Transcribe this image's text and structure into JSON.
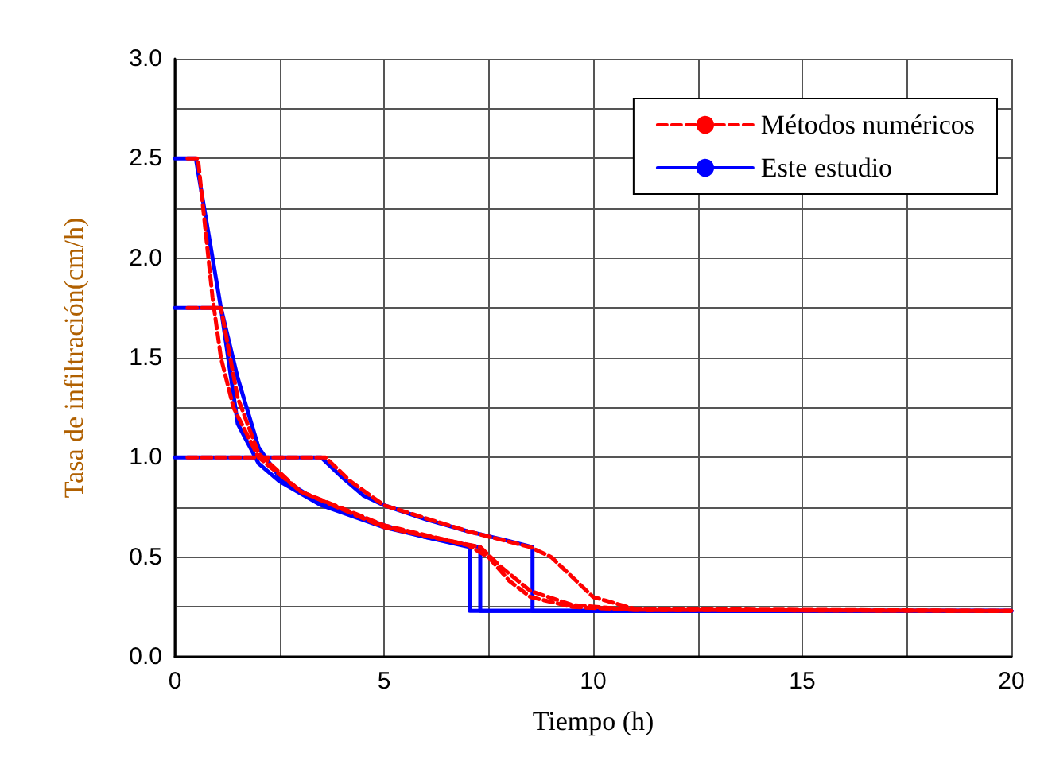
{
  "chart_data": {
    "type": "line",
    "xlabel": "Tiempo (h)",
    "ylabel": "Tasa de infiltración(cm/h)",
    "xlim": [
      0,
      20
    ],
    "ylim": [
      0,
      3.0
    ],
    "xticks": [
      0,
      {
        "value": 2.5,
        "label": null
      },
      5,
      {
        "value": 7.5,
        "label": null
      },
      10,
      {
        "value": 12.5,
        "label": null
      },
      15,
      {
        "value": 17.5,
        "label": null
      },
      20
    ],
    "yticks": [
      {
        "value": 0,
        "label": "0.0"
      },
      {
        "value": 0.25,
        "label": null
      },
      0.5,
      {
        "value": 0.75,
        "label": null
      },
      {
        "value": 1,
        "label": "1.0"
      },
      {
        "value": 1.25,
        "label": null
      },
      1.5,
      {
        "value": 1.75,
        "label": null
      },
      {
        "value": 2,
        "label": "2.0"
      },
      {
        "value": 2.25,
        "label": null
      },
      2.5,
      {
        "value": 2.75,
        "label": null
      },
      {
        "value": 3,
        "label": "3.0"
      }
    ],
    "grid": true,
    "legend": "top right",
    "marker": "none",
    "series": [
      {
        "name": "Métodos numéricos",
        "color": "#ff0000",
        "line_style": "dashed",
        "x": [
          0.3,
          0.55,
          0.7,
          0.9,
          1.1,
          1.4,
          2,
          3,
          5,
          7,
          7.5,
          8,
          8.5,
          9.5,
          11,
          20
        ],
        "values": [
          2.5,
          2.5,
          2.2,
          1.8,
          1.5,
          1.25,
          1.0,
          0.83,
          0.66,
          0.56,
          0.5,
          0.38,
          0.3,
          0.25,
          0.235,
          0.23
        ]
      },
      {
        "color": "#ff0000",
        "line_style": "dashed",
        "x": [
          0.3,
          1.1,
          1.5,
          2,
          3,
          5,
          7.3,
          7.8,
          8.5,
          9.5,
          11,
          20
        ],
        "values": [
          1.75,
          1.75,
          1.3,
          1.02,
          0.83,
          0.65,
          0.55,
          0.45,
          0.33,
          0.26,
          0.235,
          0.23
        ]
      },
      {
        "color": "#ff0000",
        "line_style": "dashed",
        "x": [
          0.3,
          3.6,
          4.2,
          5,
          7,
          8.5,
          9,
          9.5,
          10,
          11,
          20
        ],
        "values": [
          1.0,
          1.0,
          0.88,
          0.76,
          0.63,
          0.55,
          0.5,
          0.4,
          0.3,
          0.24,
          0.23
        ]
      },
      {
        "name": "Este estudio",
        "color": "#0000ff",
        "line_style": "solid",
        "x": [
          0,
          0.5,
          1.1,
          1.5,
          2,
          2.5,
          3.5,
          5,
          6,
          7.05,
          7.05,
          20
        ],
        "values": [
          2.5,
          2.5,
          1.75,
          1.4,
          1.05,
          0.9,
          0.77,
          0.66,
          0.6,
          0.55,
          0.23,
          0.23
        ]
      },
      {
        "color": "#0000ff",
        "line_style": "solid",
        "x": [
          0,
          1.1,
          1.5,
          2,
          2.5,
          3.5,
          5,
          6,
          7.3,
          7.3,
          20
        ],
        "values": [
          1.75,
          1.75,
          1.17,
          0.97,
          0.88,
          0.76,
          0.65,
          0.6,
          0.55,
          0.23,
          0.23
        ]
      },
      {
        "color": "#0000ff",
        "line_style": "solid",
        "x": [
          0,
          3.5,
          4,
          4.5,
          5,
          6,
          7,
          8,
          8.55,
          8.55,
          20
        ],
        "values": [
          1.0,
          1.0,
          0.9,
          0.81,
          0.76,
          0.69,
          0.63,
          0.58,
          0.55,
          0.23,
          0.23
        ]
      }
    ]
  }
}
